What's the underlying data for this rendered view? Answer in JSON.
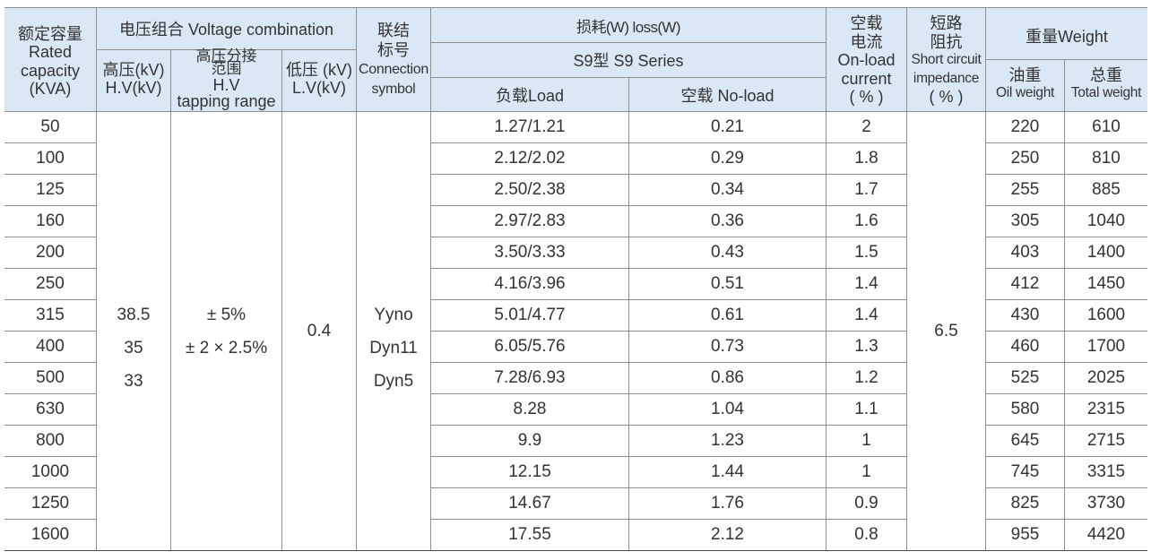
{
  "colors": {
    "header_background": "#dae8f5",
    "rule": "#8f8f8f",
    "text": "#333333",
    "bottom_rule": "#4d4d4d"
  },
  "header": {
    "capacity": [
      "额定容量",
      "Rated",
      "capacity",
      "(KVA)"
    ],
    "voltage_combination": "电压组合 Voltage combination",
    "hv": [
      "高压(kV)",
      "H.V(kV)"
    ],
    "tapping": [
      "高压分接",
      "范围",
      "H.V",
      "tapping range"
    ],
    "lv": [
      "低压 (kV)",
      "L.V(kV)"
    ],
    "connection": [
      "联结",
      "标号",
      "Connection",
      "symbol"
    ],
    "loss": "损耗(W) loss(W)",
    "series": "S9型 S9 Series",
    "load": "负载Load",
    "no_load": "空载 No-load",
    "current": [
      "空载",
      "电流",
      "On-load",
      "current",
      "( % )"
    ],
    "impedance": [
      "短路",
      "阻抗",
      "Short circuit",
      "impedance",
      "( % )"
    ],
    "weight": "重量Weight",
    "oil_weight": [
      "油重",
      "Oil weight"
    ],
    "total_weight": [
      "总重",
      "Total weight"
    ]
  },
  "merged": {
    "hv_values": [
      "38.5",
      "35",
      "33"
    ],
    "tapping_values": [
      "± 5%",
      "± 2 × 2.5%"
    ],
    "lv_value": "0.4",
    "connection_values": [
      "Yyno",
      "Dyn11",
      "Dyn5"
    ],
    "impedance_value": "6.5"
  },
  "rows": [
    {
      "capacity": "50",
      "load": "1.27/1.21",
      "no_load": "0.21",
      "current": "2",
      "oil_weight": "220",
      "total_weight": "610"
    },
    {
      "capacity": "100",
      "load": "2.12/2.02",
      "no_load": "0.29",
      "current": "1.8",
      "oil_weight": "250",
      "total_weight": "810"
    },
    {
      "capacity": "125",
      "load": "2.50/2.38",
      "no_load": "0.34",
      "current": "1.7",
      "oil_weight": "255",
      "total_weight": "885"
    },
    {
      "capacity": "160",
      "load": "2.97/2.83",
      "no_load": "0.36",
      "current": "1.6",
      "oil_weight": "305",
      "total_weight": "1040"
    },
    {
      "capacity": "200",
      "load": "3.50/3.33",
      "no_load": "0.43",
      "current": "1.5",
      "oil_weight": "403",
      "total_weight": "1400"
    },
    {
      "capacity": "250",
      "load": "4.16/3.96",
      "no_load": "0.51",
      "current": "1.4",
      "oil_weight": "412",
      "total_weight": "1450"
    },
    {
      "capacity": "315",
      "load": "5.01/4.77",
      "no_load": "0.61",
      "current": "1.4",
      "oil_weight": "430",
      "total_weight": "1600"
    },
    {
      "capacity": "400",
      "load": "6.05/5.76",
      "no_load": "0.73",
      "current": "1.3",
      "oil_weight": "460",
      "total_weight": "1700"
    },
    {
      "capacity": "500",
      "load": "7.28/6.93",
      "no_load": "0.86",
      "current": "1.2",
      "oil_weight": "525",
      "total_weight": "2025"
    },
    {
      "capacity": "630",
      "load": "8.28",
      "no_load": "1.04",
      "current": "1.1",
      "oil_weight": "580",
      "total_weight": "2315"
    },
    {
      "capacity": "800",
      "load": "9.9",
      "no_load": "1.23",
      "current": "1",
      "oil_weight": "645",
      "total_weight": "2715"
    },
    {
      "capacity": "1000",
      "load": "12.15",
      "no_load": "1.44",
      "current": "1",
      "oil_weight": "745",
      "total_weight": "3315"
    },
    {
      "capacity": "1250",
      "load": "14.67",
      "no_load": "1.76",
      "current": "0.9",
      "oil_weight": "825",
      "total_weight": "3730"
    },
    {
      "capacity": "1600",
      "load": "17.55",
      "no_load": "2.12",
      "current": "0.8",
      "oil_weight": "955",
      "total_weight": "4420"
    }
  ]
}
